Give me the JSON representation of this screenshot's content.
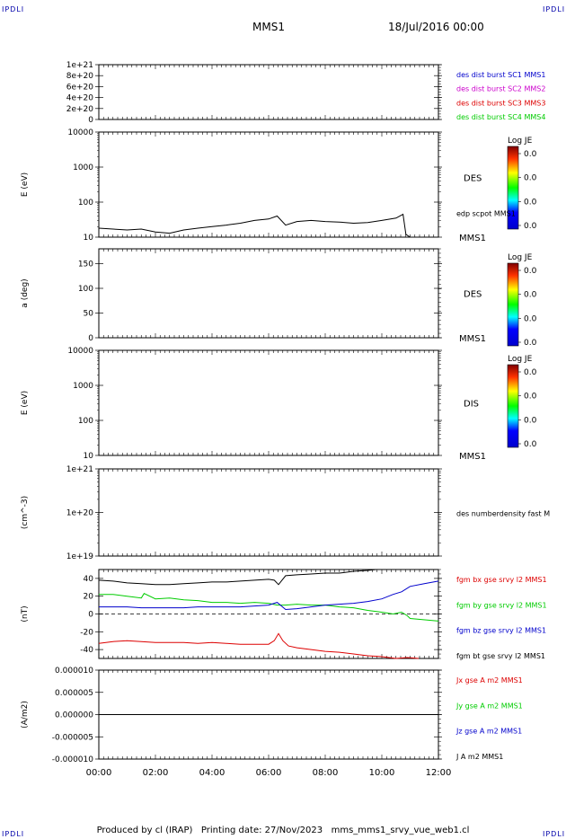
{
  "header": {
    "corner_left": "IPDLI",
    "corner_right": "IPDLI",
    "title": "MMS1",
    "date": "18/Jul/2016 00:00"
  },
  "footer": {
    "text": "Produced by cl (IRAP)   Printing date: 27/Nov/2023   mms_mms1_srvy_vue_web1.cl",
    "corner_left": "IPDLI",
    "corner_right": "IPDLI"
  },
  "colors": {
    "red": "#dd0000",
    "green": "#00cc00",
    "blue": "#0000cc",
    "magenta": "#cc00cc",
    "black": "#000000",
    "dash": "#000000"
  },
  "chart_data": [
    {
      "id": "p1",
      "type": "line",
      "ylabel": "",
      "yticks": [
        "1e+21",
        "8e+20",
        "6e+20",
        "4e+20",
        "2e+20",
        "0"
      ],
      "ylim": [
        0,
        1e+21
      ],
      "series": [
        {
          "name": "des dist burst SC1 MMS1",
          "color": "#0000cc"
        },
        {
          "name": "des dist burst SC2 MMS2",
          "color": "#cc00cc"
        },
        {
          "name": "des dist burst SC3 MMS3",
          "color": "#dd0000"
        },
        {
          "name": "des dist burst SC4 MMS4",
          "color": "#00cc00"
        }
      ],
      "zero_dashed": true
    },
    {
      "id": "p2",
      "type": "line",
      "ylabel": "E (eV)",
      "yticks": [
        "10000",
        "1000",
        "100",
        "10"
      ],
      "yscale": "log",
      "ylim": [
        10,
        10000
      ],
      "right_label": "DES",
      "right_sublabel": "edp scpot MMS1",
      "bottom_right_label": "MMS1",
      "colorbar": {
        "title": "Log JE",
        "ticks": [
          "0.0",
          "0.0",
          "0.0",
          "0.0"
        ]
      },
      "series": [
        {
          "name": "edp scpot MMS1",
          "color": "#000000",
          "x": [
            0.0,
            0.5,
            1.0,
            1.5,
            2.0,
            2.5,
            3.0,
            3.5,
            4.0,
            4.5,
            5.0,
            5.5,
            6.0,
            6.3,
            6.6,
            7.0,
            7.5,
            8.0,
            8.5,
            9.0,
            9.5,
            10.0,
            10.5,
            10.75,
            10.85,
            11.0,
            11.3
          ],
          "y": [
            18,
            17,
            16,
            17,
            14,
            13,
            16,
            18,
            20,
            22,
            25,
            30,
            33,
            40,
            22,
            28,
            30,
            28,
            27,
            25,
            26,
            30,
            35,
            45,
            12,
            10,
            10
          ]
        }
      ]
    },
    {
      "id": "p3",
      "type": "heatmap",
      "ylabel": "a (deg)",
      "yticks": [
        "150",
        "100",
        "50",
        "0"
      ],
      "ylim": [
        0,
        180
      ],
      "right_label": "DES",
      "bottom_right_label": "MMS1",
      "colorbar": {
        "title": "Log JE",
        "ticks": [
          "0.0",
          "0.0",
          "0.0",
          "0.0"
        ]
      }
    },
    {
      "id": "p4",
      "type": "heatmap",
      "ylabel": "E (eV)",
      "yticks": [
        "10000",
        "1000",
        "100",
        "10"
      ],
      "yscale": "log",
      "ylim": [
        10,
        10000
      ],
      "right_label": "DIS",
      "bottom_right_label": "MMS1",
      "colorbar": {
        "title": "Log JE",
        "ticks": [
          "0.0",
          "0.0",
          "0.0",
          "0.0"
        ]
      }
    },
    {
      "id": "p5",
      "type": "line",
      "ylabel": "(cm^-3)",
      "yticks": [
        "1e+21",
        "1e+20",
        "1e+19"
      ],
      "yscale": "log",
      "ylim": [
        1e+19,
        1e+21
      ],
      "series": [
        {
          "name": "des numberdensity fast M",
          "color": "#000000"
        }
      ]
    },
    {
      "id": "p6",
      "type": "line",
      "ylabel": "(nT)",
      "yticks": [
        "40",
        "20",
        "0",
        "-20",
        "-40"
      ],
      "ylim": [
        -50,
        50
      ],
      "zero_dashed": true,
      "series": [
        {
          "name": "fgm bx gse srvy l2 MMS1",
          "color": "#dd0000",
          "x": [
            0,
            0.5,
            1,
            1.5,
            2,
            2.5,
            3,
            3.5,
            4,
            4.5,
            5,
            5.5,
            6,
            6.2,
            6.35,
            6.5,
            6.7,
            7,
            7.5,
            8,
            8.5,
            9,
            9.5,
            10,
            10.5,
            10.9,
            11.3
          ],
          "y": [
            -33,
            -31,
            -30,
            -31,
            -32,
            -32,
            -32,
            -33,
            -32,
            -33,
            -34,
            -34,
            -34,
            -30,
            -22,
            -30,
            -36,
            -38,
            -40,
            -42,
            -43,
            -45,
            -47,
            -48,
            -50,
            -49,
            -50
          ]
        },
        {
          "name": "fgm by gse srvy l2 MMS1",
          "color": "#00cc00",
          "x": [
            0,
            0.5,
            1,
            1.5,
            1.6,
            2,
            2.5,
            3,
            3.5,
            4,
            4.5,
            5,
            5.5,
            6,
            6.3,
            6.6,
            7,
            7.5,
            8,
            8.5,
            9,
            9.5,
            10,
            10.4,
            10.7,
            10.9,
            11,
            11.3,
            12
          ],
          "y": [
            22,
            22,
            20,
            18,
            23,
            17,
            18,
            16,
            15,
            13,
            13,
            12,
            13,
            12,
            10,
            10,
            11,
            10,
            10,
            8,
            7,
            4,
            2,
            0,
            2,
            -2,
            -5,
            -6,
            -8
          ]
        },
        {
          "name": "fgm bz gse srvy l2 MMS1",
          "color": "#0000cc",
          "x": [
            0,
            0.5,
            1,
            1.5,
            2,
            2.5,
            3,
            3.5,
            4,
            4.5,
            5,
            5.5,
            6,
            6.3,
            6.6,
            7,
            7.5,
            8,
            8.5,
            9,
            9.5,
            10,
            10.4,
            10.7,
            11,
            11.5,
            12
          ],
          "y": [
            8,
            8,
            8,
            7,
            7,
            7,
            7,
            8,
            8,
            8,
            8,
            9,
            10,
            13,
            5,
            6,
            8,
            10,
            11,
            12,
            14,
            17,
            22,
            25,
            31,
            34,
            37
          ]
        },
        {
          "name": "fgm bt gse srvy l2 MMS1",
          "color": "#000000",
          "x": [
            0,
            0.5,
            1,
            1.5,
            2,
            2.5,
            3,
            3.5,
            4,
            4.5,
            5,
            5.5,
            6,
            6.2,
            6.35,
            6.6,
            7,
            7.5,
            8,
            8.5,
            9,
            9.5,
            9.8
          ],
          "y": [
            38,
            37,
            35,
            34,
            33,
            33,
            34,
            35,
            36,
            36,
            37,
            38,
            39,
            38,
            33,
            43,
            44,
            45,
            46,
            46,
            48,
            49,
            50
          ]
        }
      ]
    },
    {
      "id": "p7",
      "type": "line",
      "ylabel": "(A/m2)",
      "yticks": [
        "0.000010",
        "0.000005",
        "0.000000",
        "-0.000005",
        "-0.000010"
      ],
      "ylim": [
        -1e-05,
        1e-05
      ],
      "xticks": [
        "00:00",
        "02:00",
        "04:00",
        "06:00",
        "08:00",
        "10:00",
        "12:00"
      ],
      "xlim_hours": [
        0,
        12
      ],
      "series": [
        {
          "name": "Jx gse A m2 MMS1",
          "color": "#dd0000"
        },
        {
          "name": "Jy gse A m2 MMS1",
          "color": "#00cc00"
        },
        {
          "name": "Jz gse A m2 MMS1",
          "color": "#0000cc"
        },
        {
          "name": "J A m2 MMS1",
          "color": "#000000",
          "x": [
            0,
            2,
            4,
            6,
            8,
            10,
            11,
            12
          ],
          "y": [
            0,
            0,
            0,
            0,
            0,
            0,
            0,
            0
          ]
        }
      ]
    }
  ]
}
